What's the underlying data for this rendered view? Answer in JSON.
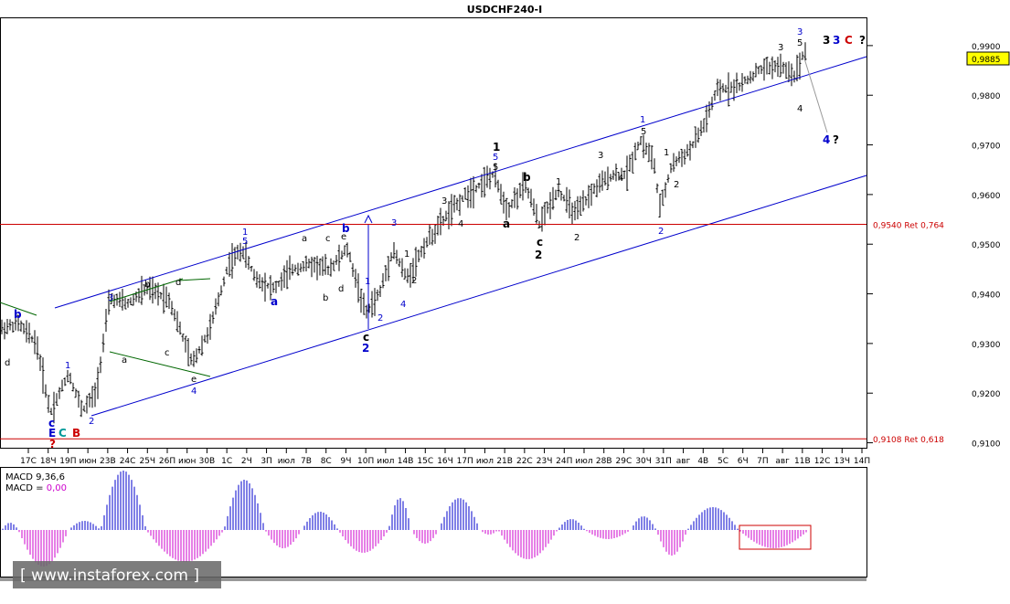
{
  "chart_data": {
    "type": "bar",
    "title": "USDCHF240-I",
    "last_price": "0,9885",
    "y_ticks": [
      "0,9900",
      "0,9800",
      "0,9700",
      "0,9600",
      "0,9500",
      "0,9400",
      "0,9300",
      "0,9200",
      "0,9100"
    ],
    "y_range": [
      0.909,
      0.9955
    ],
    "x_ticks": [
      "17С",
      "18Ч",
      "19П",
      "июн",
      "23В",
      "24С",
      "25Ч",
      "26П",
      "июн",
      "30В",
      "1С",
      "2Ч",
      "3П",
      "июл",
      "7В",
      "8С",
      "9Ч",
      "10П",
      "июл",
      "14В",
      "15С",
      "16Ч",
      "17П",
      "июл",
      "21В",
      "22С",
      "23Ч",
      "24П",
      "июл",
      "28В",
      "29С",
      "30Ч",
      "31П",
      "авг",
      "4В",
      "5С",
      "6Ч",
      "7П",
      "авг",
      "11В",
      "12С",
      "13Ч",
      "14П"
    ],
    "levels": [
      {
        "label": "0,9540 Ret 0,764",
        "value": 0.954,
        "color": "#cc0000"
      },
      {
        "label": "0,9108 Ret 0,618",
        "value": 0.9108,
        "color": "#cc0000"
      }
    ],
    "macd_label": "MACD 9,36,6",
    "macd_zero_label": "MACD = ",
    "macd_zero_value": "0,00",
    "watermark": "www.instaforex.com",
    "colors": {
      "up": "#0000cc",
      "down": "#cc00cc",
      "channel": "#0000cc",
      "level": "#cc0000",
      "bars": "#000000"
    }
  }
}
